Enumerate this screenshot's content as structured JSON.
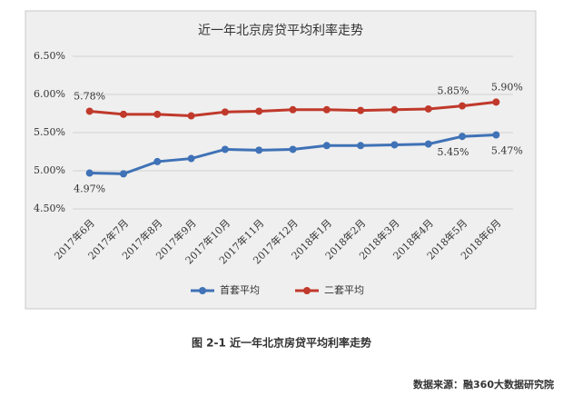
{
  "chart_data": {
    "type": "line",
    "title": "近一年北京房贷平均利率走势",
    "categories": [
      "2017年6月",
      "2017年7月",
      "2017年8月",
      "2017年9月",
      "2017年10月",
      "2017年11月",
      "2017年12月",
      "2018年1月",
      "2018年2月",
      "2018年3月",
      "2018年4月",
      "2018年5月",
      "2018年6月"
    ],
    "series": [
      {
        "name": "首套平均",
        "color": "#3f72b6",
        "values": [
          4.97,
          4.96,
          5.12,
          5.16,
          5.28,
          5.27,
          5.28,
          5.33,
          5.33,
          5.34,
          5.35,
          5.45,
          5.47
        ],
        "value_labels": [
          "4.97%",
          null,
          null,
          null,
          null,
          null,
          null,
          null,
          null,
          null,
          null,
          "5.45%",
          "5.47%"
        ]
      },
      {
        "name": "二套平均",
        "color": "#c0392b",
        "values": [
          5.78,
          5.74,
          5.74,
          5.72,
          5.77,
          5.78,
          5.8,
          5.8,
          5.79,
          5.8,
          5.81,
          5.85,
          5.9
        ],
        "value_labels": [
          "5.78%",
          null,
          null,
          null,
          null,
          null,
          null,
          null,
          null,
          null,
          null,
          "5.85%",
          "5.90%"
        ]
      }
    ],
    "ylim": [
      4.5,
      6.5
    ],
    "yticks": [
      {
        "value": 4.5,
        "label": "4.50%"
      },
      {
        "value": 5.0,
        "label": "5.00%"
      },
      {
        "value": 5.5,
        "label": "5.50%"
      },
      {
        "value": 6.0,
        "label": "6.00%"
      },
      {
        "value": 6.5,
        "label": "6.50%"
      }
    ],
    "grid": true,
    "legend": "bottom",
    "caption": "图 2-1 近一年北京房贷平均利率走势",
    "source": "数据来源：融360大数据研究院"
  }
}
